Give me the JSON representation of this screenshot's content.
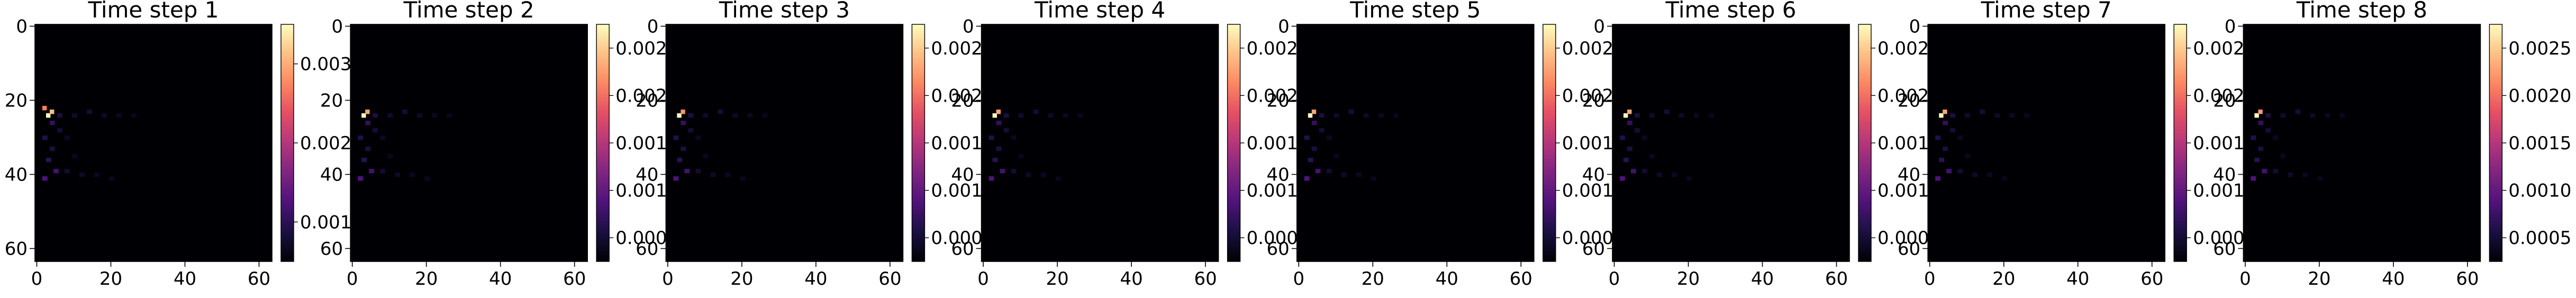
{
  "figure": {
    "colormap": "magma"
  },
  "chart_data": [
    {
      "type": "heatmap",
      "title": "Time step 1",
      "xlim": [
        0,
        64
      ],
      "ylim": [
        64,
        0
      ],
      "xticks": [
        0,
        20,
        40,
        60
      ],
      "yticks": [
        0,
        20,
        40,
        60
      ],
      "colorbar": {
        "min": 0.0,
        "max": 0.003,
        "ticks": [
          "0.001",
          "0.002",
          "0.003"
        ]
      },
      "hotspots": [
        {
          "x": 3,
          "y": 24,
          "value": 0.003
        },
        {
          "x": 2,
          "y": 22,
          "value": 0.0022
        },
        {
          "x": 4,
          "y": 23,
          "value": 0.0026
        }
      ]
    },
    {
      "type": "heatmap",
      "title": "Time step 2",
      "xlim": [
        0,
        64
      ],
      "ylim": [
        64,
        0
      ],
      "xticks": [
        0,
        20,
        40,
        60
      ],
      "yticks": [
        0,
        20,
        40,
        60
      ],
      "colorbar": {
        "min": 0.0,
        "max": 0.0027,
        "ticks": [
          "0.000",
          "0.001",
          "0.001",
          "0.002",
          "0.002"
        ]
      },
      "hotspots": [
        {
          "x": 3,
          "y": 24,
          "value": 0.0027
        },
        {
          "x": 4,
          "y": 23,
          "value": 0.0022
        }
      ]
    },
    {
      "type": "heatmap",
      "title": "Time step 3",
      "xlim": [
        0,
        64
      ],
      "ylim": [
        64,
        0
      ],
      "xticks": [
        0,
        20,
        40,
        60
      ],
      "yticks": [
        0,
        20,
        40,
        60
      ],
      "colorbar": {
        "min": 0.0,
        "max": 0.0027,
        "ticks": [
          "0.000",
          "0.001",
          "0.001",
          "0.002",
          "0.002"
        ]
      },
      "hotspots": [
        {
          "x": 3,
          "y": 24,
          "value": 0.0027
        },
        {
          "x": 4,
          "y": 23,
          "value": 0.0021
        }
      ]
    },
    {
      "type": "heatmap",
      "title": "Time step 4",
      "xlim": [
        0,
        64
      ],
      "ylim": [
        64,
        0
      ],
      "xticks": [
        0,
        20,
        40,
        60
      ],
      "yticks": [
        0,
        20,
        40,
        60
      ],
      "colorbar": {
        "min": 0.0,
        "max": 0.0027,
        "ticks": [
          "0.000",
          "0.001",
          "0.001",
          "0.002",
          "0.002"
        ]
      },
      "hotspots": [
        {
          "x": 3,
          "y": 24,
          "value": 0.0027
        },
        {
          "x": 4,
          "y": 23,
          "value": 0.0022
        }
      ]
    },
    {
      "type": "heatmap",
      "title": "Time step 5",
      "xlim": [
        0,
        64
      ],
      "ylim": [
        64,
        0
      ],
      "xticks": [
        0,
        20,
        40,
        60
      ],
      "yticks": [
        0,
        20,
        40,
        60
      ],
      "colorbar": {
        "min": 0.0,
        "max": 0.0027,
        "ticks": [
          "0.000",
          "0.001",
          "0.001",
          "0.002",
          "0.002"
        ]
      },
      "hotspots": [
        {
          "x": 3,
          "y": 24,
          "value": 0.0027
        },
        {
          "x": 4,
          "y": 23,
          "value": 0.0022
        }
      ]
    },
    {
      "type": "heatmap",
      "title": "Time step 6",
      "xlim": [
        0,
        64
      ],
      "ylim": [
        64,
        0
      ],
      "xticks": [
        0,
        20,
        40,
        60
      ],
      "yticks": [
        0,
        20,
        40,
        60
      ],
      "colorbar": {
        "min": 0.0,
        "max": 0.0027,
        "ticks": [
          "0.000",
          "0.001",
          "0.001",
          "0.002",
          "0.002"
        ]
      },
      "hotspots": [
        {
          "x": 3,
          "y": 24,
          "value": 0.0027
        },
        {
          "x": 4,
          "y": 23,
          "value": 0.0022
        }
      ]
    },
    {
      "type": "heatmap",
      "title": "Time step 7",
      "xlim": [
        0,
        64
      ],
      "ylim": [
        64,
        0
      ],
      "xticks": [
        0,
        20,
        40,
        60
      ],
      "yticks": [
        0,
        20,
        40,
        60
      ],
      "colorbar": {
        "min": 0.0,
        "max": 0.0027,
        "ticks": [
          "0.000",
          "0.001",
          "0.001",
          "0.002",
          "0.002"
        ]
      },
      "hotspots": [
        {
          "x": 3,
          "y": 24,
          "value": 0.0027
        },
        {
          "x": 4,
          "y": 23,
          "value": 0.0022
        }
      ]
    },
    {
      "type": "heatmap",
      "title": "Time step 8",
      "xlim": [
        0,
        64
      ],
      "ylim": [
        64,
        0
      ],
      "xticks": [
        0,
        20,
        40,
        60
      ],
      "yticks": [
        0,
        20,
        40,
        60
      ],
      "colorbar": {
        "min": 0.0,
        "max": 0.0028,
        "ticks": [
          "0.0005",
          "0.0010",
          "0.0015",
          "0.0020",
          "0.0025"
        ]
      },
      "hotspots": [
        {
          "x": 3,
          "y": 24,
          "value": 0.0028
        },
        {
          "x": 4,
          "y": 23,
          "value": 0.0022
        }
      ]
    }
  ]
}
